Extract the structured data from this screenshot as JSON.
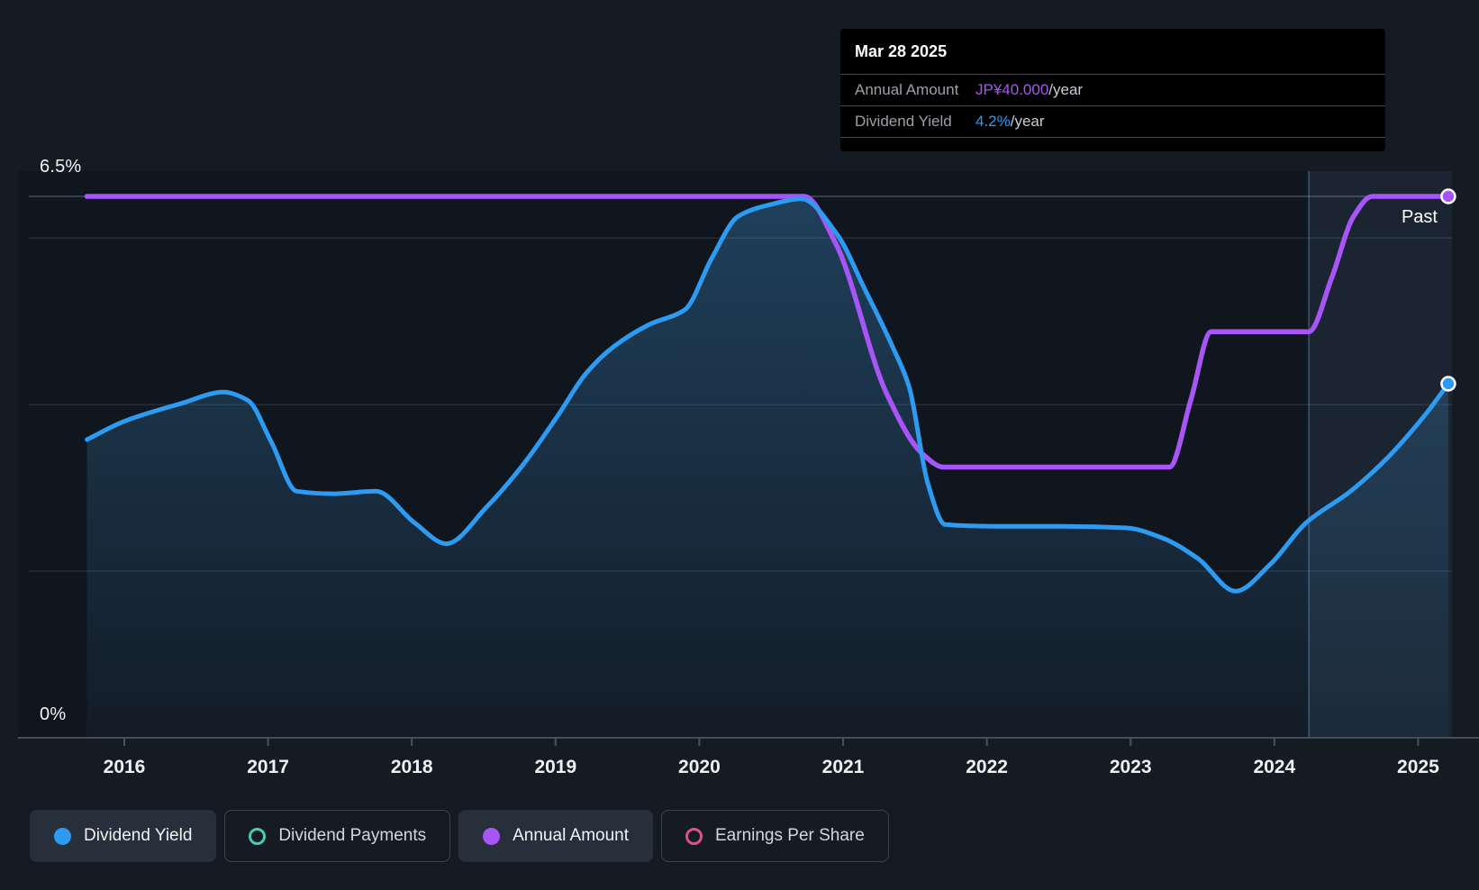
{
  "app": {
    "background": "#151b23",
    "plot_background": "#10161e"
  },
  "header_tooltip": {
    "date": "Mar 28 2025",
    "rows": [
      {
        "label": "Annual Amount",
        "value": "JP¥40.000",
        "suffix": "/year",
        "color": "#a855f7"
      },
      {
        "label": "Dividend Yield",
        "value": "4.2%",
        "suffix": "/year",
        "color": "#2e9bf2"
      }
    ]
  },
  "chart": {
    "past_label": "Past",
    "y_axis": {
      "top_label": "6.5%",
      "bottom_label": "0%"
    },
    "x_ticks": [
      "2016",
      "2017",
      "2018",
      "2019",
      "2020",
      "2021",
      "2022",
      "2023",
      "2024",
      "2025"
    ]
  },
  "legend": [
    {
      "label": "Dividend Yield",
      "swatch": "filled",
      "color": "#2e9bf2",
      "active": true
    },
    {
      "label": "Dividend Payments",
      "swatch": "ring",
      "color": "#4dc9b8",
      "active": false
    },
    {
      "label": "Annual Amount",
      "swatch": "filled",
      "color": "#a855f7",
      "active": true
    },
    {
      "label": "Earnings Per Share",
      "swatch": "ring",
      "color": "#e0508c",
      "active": false
    }
  ],
  "chart_data": {
    "type": "area",
    "title": "Dividend history",
    "x_range": [
      2015.74,
      2025.27
    ],
    "x_tick_years": [
      2016,
      2017,
      2018,
      2019,
      2020,
      2021,
      2022,
      2023,
      2024,
      2025
    ],
    "yield_axis": {
      "min": 0,
      "max": 6.5,
      "top_label": "6.5%",
      "bottom_label": "0%",
      "gridlines_pct": [
        6.5,
        6,
        4,
        2
      ]
    },
    "amount_axis": {
      "min": 0,
      "max": 40,
      "unit": "JP¥"
    },
    "past_band_start_year": 2024.24,
    "end_marker_date": "Mar 28 2025",
    "legend_position": "bottom",
    "series": [
      {
        "name": "Dividend Yield",
        "kind": "yield_pct",
        "style": "area-line",
        "color": "#2e9bf2",
        "end_value_label": "4.2%",
        "points": [
          [
            2015.74,
            3.58
          ],
          [
            2016.0,
            3.8
          ],
          [
            2016.39,
            4.01
          ],
          [
            2016.69,
            4.15
          ],
          [
            2016.86,
            4.05
          ],
          [
            2017.02,
            3.56
          ],
          [
            2017.2,
            2.96
          ],
          [
            2017.45,
            2.93
          ],
          [
            2017.75,
            2.96
          ],
          [
            2018.02,
            2.58
          ],
          [
            2018.24,
            2.33
          ],
          [
            2018.52,
            2.77
          ],
          [
            2018.77,
            3.27
          ],
          [
            2019.02,
            3.88
          ],
          [
            2019.21,
            4.37
          ],
          [
            2019.4,
            4.69
          ],
          [
            2019.65,
            4.96
          ],
          [
            2019.9,
            5.14
          ],
          [
            2020.09,
            5.77
          ],
          [
            2020.27,
            6.26
          ],
          [
            2020.49,
            6.4
          ],
          [
            2020.71,
            6.47
          ],
          [
            2020.96,
            6.04
          ],
          [
            2021.15,
            5.39
          ],
          [
            2021.34,
            4.71
          ],
          [
            2021.46,
            4.21
          ],
          [
            2021.59,
            3.05
          ],
          [
            2021.71,
            2.56
          ],
          [
            2022.03,
            2.54
          ],
          [
            2022.53,
            2.54
          ],
          [
            2022.97,
            2.52
          ],
          [
            2023.22,
            2.4
          ],
          [
            2023.47,
            2.15
          ],
          [
            2023.73,
            1.76
          ],
          [
            2023.97,
            2.08
          ],
          [
            2024.22,
            2.58
          ],
          [
            2024.53,
            2.96
          ],
          [
            2024.78,
            3.35
          ],
          [
            2025.05,
            3.88
          ],
          [
            2025.21,
            4.25
          ]
        ]
      },
      {
        "name": "Annual Amount",
        "kind": "amount",
        "style": "line",
        "color": "#a855f7",
        "end_value_label": "JP¥40.000",
        "points": [
          [
            2015.74,
            40
          ],
          [
            2018.0,
            40
          ],
          [
            2020.73,
            40
          ],
          [
            2020.95,
            36.5
          ],
          [
            2021.3,
            25.5
          ],
          [
            2021.55,
            21
          ],
          [
            2021.7,
            20
          ],
          [
            2022.5,
            20
          ],
          [
            2023.27,
            20
          ],
          [
            2023.42,
            25
          ],
          [
            2023.56,
            30
          ],
          [
            2023.9,
            30
          ],
          [
            2024.24,
            30
          ],
          [
            2024.4,
            34
          ],
          [
            2024.55,
            38.5
          ],
          [
            2024.68,
            40
          ],
          [
            2025.21,
            40
          ]
        ]
      }
    ]
  }
}
